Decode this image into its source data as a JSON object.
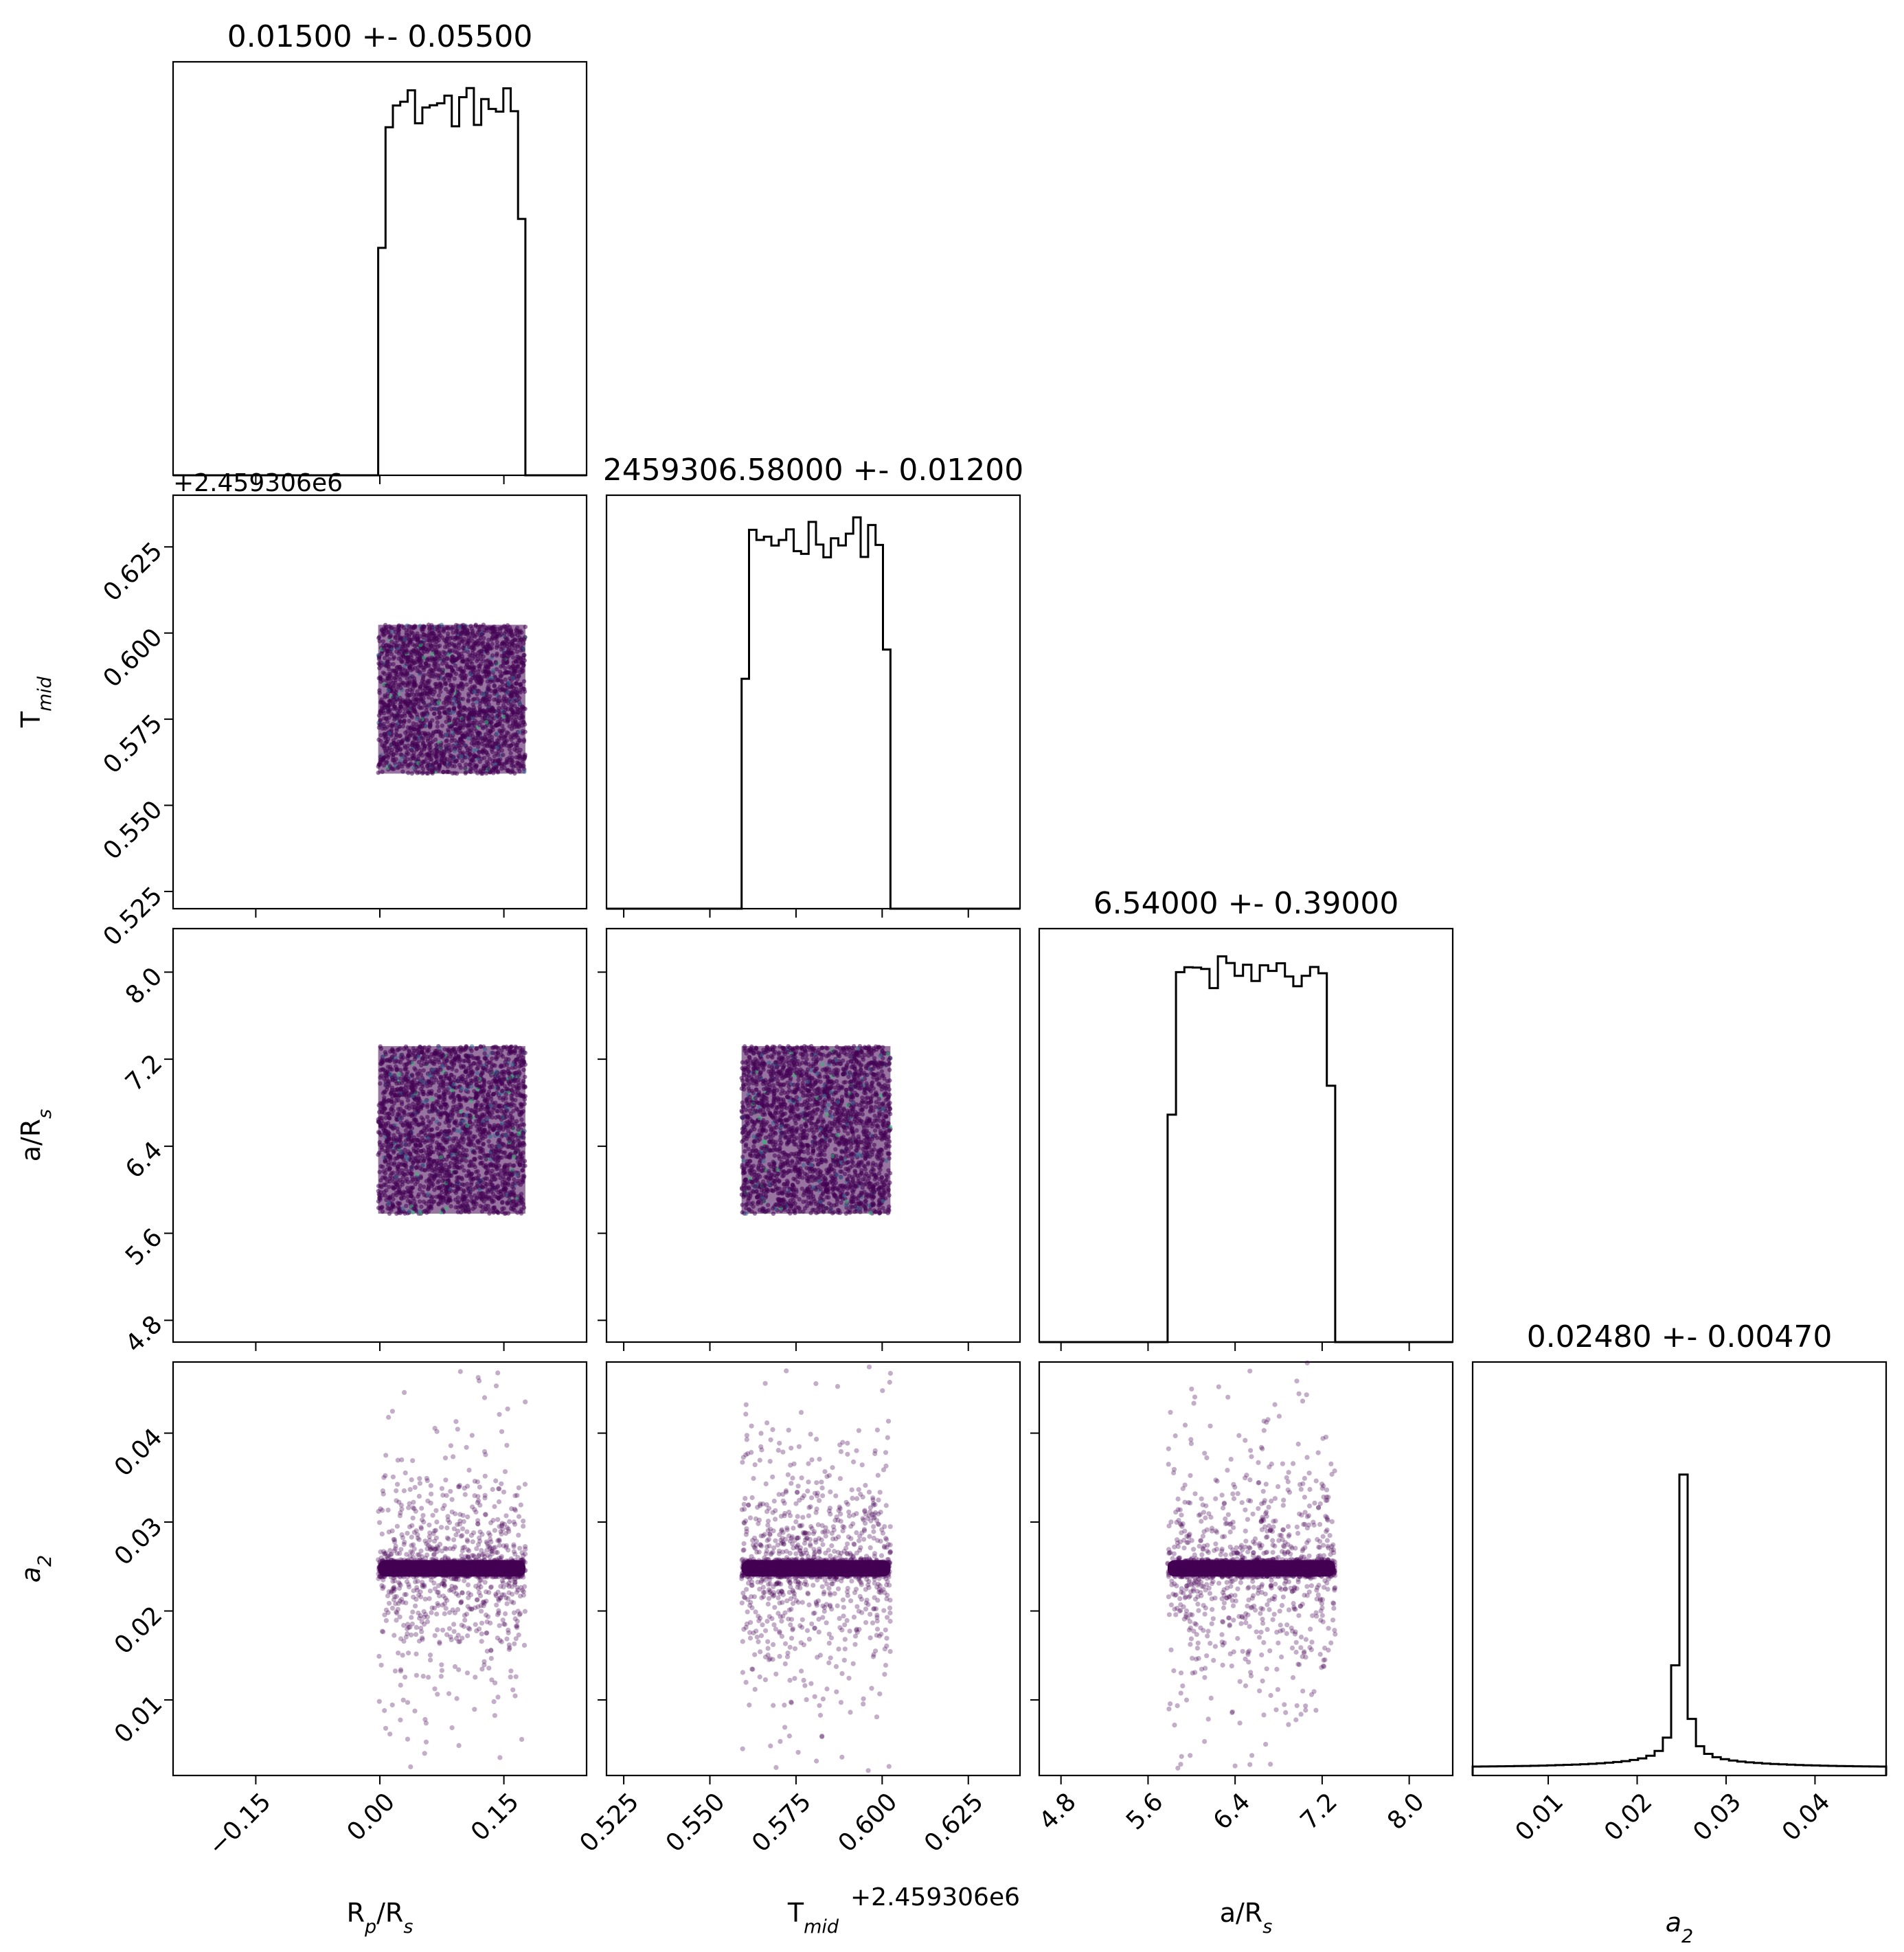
{
  "figure": {
    "axis_labels": [
      "R",
      "T",
      "a/R",
      "a"
    ],
    "label_subscripts": [
      "p",
      "mid",
      "s",
      "2"
    ],
    "label_tails": [
      "/R",
      "",
      "",
      ""
    ],
    "label_tail_subscripts": [
      "s",
      "",
      "",
      ""
    ],
    "offset_text": "+2.459306e6",
    "colors": {
      "line": "#000000",
      "points": "#440154",
      "points_alt": [
        "#31688e",
        "#35b779",
        "#fde725"
      ]
    }
  },
  "chart_data": [
    {
      "type": "histogram",
      "panel": "diag-0",
      "title": "0.01500 +- 0.05500",
      "xlim": [
        -0.25,
        0.25
      ],
      "xticks": [
        -0.15,
        0.0,
        0.15
      ],
      "xtick_labels": [
        "−0.15",
        "0.00",
        "0.15"
      ],
      "range": [
        -0.002,
        0.176
      ],
      "peak_fraction": 0.92
    },
    {
      "type": "histogram",
      "panel": "diag-1",
      "title": "2459306.58000 +- 0.01200",
      "xlim": [
        0.52,
        0.64
      ],
      "xticks": [
        0.525,
        0.55,
        0.575,
        0.6,
        0.625
      ],
      "xtick_labels": [
        "0.525",
        "0.550",
        "0.575",
        "0.600",
        "0.625"
      ],
      "range": [
        0.5592,
        0.6024
      ],
      "peak_fraction": 0.93
    },
    {
      "type": "histogram",
      "panel": "diag-2",
      "title": "6.54000 +- 0.39000",
      "xlim": [
        4.6,
        8.4
      ],
      "xticks": [
        4.8,
        5.6,
        6.4,
        7.2,
        8.0
      ],
      "xtick_labels": [
        "4.8",
        "5.6",
        "6.4",
        "7.2",
        "8.0"
      ],
      "range": [
        5.78,
        7.32
      ],
      "peak_fraction": 0.92
    },
    {
      "type": "histogram",
      "panel": "diag-3",
      "title": "0.02480 +- 0.00470",
      "xlim": [
        0.0015,
        0.048
      ],
      "xticks": [
        0.01,
        0.02,
        0.03,
        0.04
      ],
      "xtick_labels": [
        "0.01",
        "0.02",
        "0.03",
        "0.04"
      ],
      "center": 0.0248,
      "peak_fraction": 0.92
    },
    {
      "type": "scatter",
      "panel": "scatter-1-0",
      "x_range": [
        -0.002,
        0.176
      ],
      "y_range": [
        0.5592,
        0.6024
      ],
      "ylim": [
        0.52,
        0.64
      ],
      "yticks": [
        0.525,
        0.55,
        0.575,
        0.6,
        0.625
      ],
      "ytick_labels": [
        "0.525",
        "0.550",
        "0.575",
        "0.600",
        "0.625"
      ],
      "n_points": 2500,
      "distribution": "uniform"
    },
    {
      "type": "scatter",
      "panel": "scatter-2-0",
      "x_range": [
        -0.002,
        0.176
      ],
      "y_range": [
        5.78,
        7.32
      ],
      "ylim": [
        4.6,
        8.4
      ],
      "yticks": [
        4.8,
        5.6,
        6.4,
        7.2,
        8.0
      ],
      "ytick_labels": [
        "4.8",
        "5.6",
        "6.4",
        "7.2",
        "8.0"
      ],
      "n_points": 2500,
      "distribution": "uniform"
    },
    {
      "type": "scatter",
      "panel": "scatter-2-1",
      "x_range": [
        0.5592,
        0.6024
      ],
      "y_range": [
        5.78,
        7.32
      ],
      "n_points": 2500,
      "distribution": "uniform"
    },
    {
      "type": "scatter",
      "panel": "scatter-3-0",
      "x_range": [
        -0.002,
        0.176
      ],
      "y_center": 0.0248,
      "y_range": [
        0.002,
        0.048
      ],
      "ylim": [
        0.0015,
        0.048
      ],
      "yticks": [
        0.01,
        0.02,
        0.03,
        0.04
      ],
      "ytick_labels": [
        "0.01",
        "0.02",
        "0.03",
        "0.04"
      ],
      "n_points": 1500,
      "distribution": "peaked"
    },
    {
      "type": "scatter",
      "panel": "scatter-3-1",
      "x_range": [
        0.5592,
        0.6024
      ],
      "y_center": 0.0248,
      "y_range": [
        0.002,
        0.048
      ],
      "n_points": 1500,
      "distribution": "peaked"
    },
    {
      "type": "scatter",
      "panel": "scatter-3-2",
      "x_range": [
        5.78,
        7.32
      ],
      "y_center": 0.0248,
      "y_range": [
        0.002,
        0.048
      ],
      "n_points": 1500,
      "distribution": "peaked"
    }
  ]
}
